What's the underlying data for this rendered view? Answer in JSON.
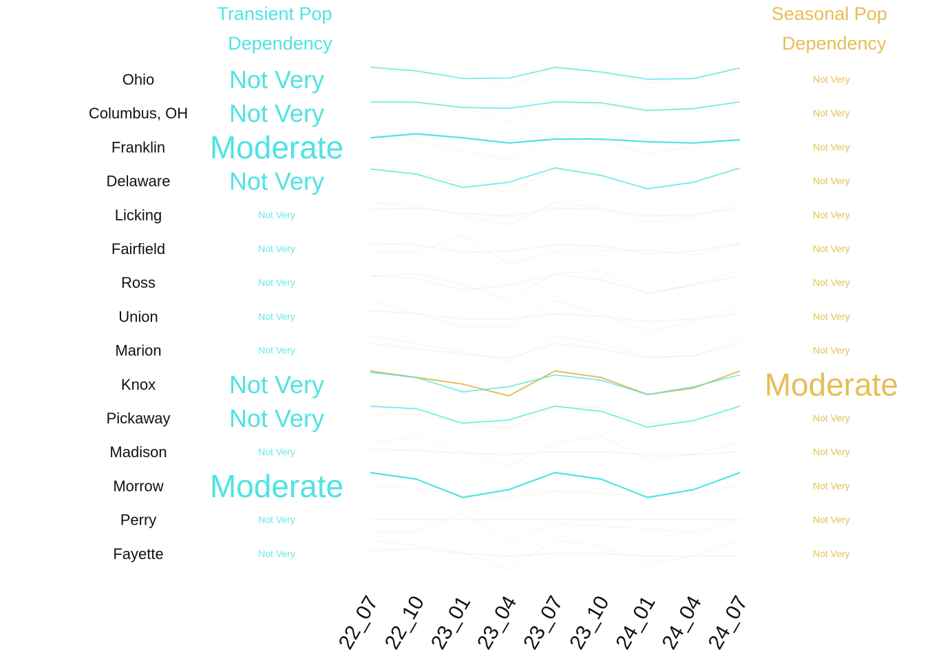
{
  "colors": {
    "transient": "#4FE3E3",
    "seasonal": "#E6BE55",
    "label": "#111111"
  },
  "headers": {
    "transient": [
      "Transient Pop",
      "Dependency"
    ],
    "seasonal": [
      "Seasonal Pop",
      "Dependency"
    ]
  },
  "chart_data": {
    "type": "line",
    "x": [
      "22_07",
      "22_10",
      "23_01",
      "23_04",
      "23_07",
      "23_10",
      "24_01",
      "24_04",
      "24_07"
    ],
    "rows": [
      {
        "region": "Ohio",
        "transient": {
          "level": "Not Very",
          "values": [
            0.92,
            0.63,
            0.06,
            0.08,
            0.9,
            0.55,
            0.0,
            0.04,
            0.85
          ]
        },
        "seasonal": {
          "level": "Not Very",
          "values": [
            0.85,
            0.45,
            0.35,
            -0.7,
            1.0,
            0.5,
            -0.3,
            0.1,
            0.9
          ]
        }
      },
      {
        "region": "Columbus, OH",
        "transient": {
          "level": "Not Very",
          "values": [
            0.85,
            0.83,
            0.43,
            0.36,
            0.85,
            0.78,
            0.2,
            0.34,
            0.85
          ]
        },
        "seasonal": {
          "level": "Not Very",
          "values": [
            0.7,
            0.7,
            0.4,
            -0.75,
            0.9,
            0.6,
            0.1,
            0.3,
            0.9
          ]
        }
      },
      {
        "region": "Franklin",
        "transient": {
          "level": "Moderate",
          "values": [
            0.7,
            1.0,
            0.7,
            0.3,
            0.6,
            0.6,
            0.4,
            0.3,
            0.55
          ]
        },
        "seasonal": {
          "level": "Not Very",
          "values": [
            1.0,
            0.4,
            -0.3,
            -1.0,
            1.0,
            0.5,
            -0.5,
            0.0,
            1.0
          ]
        }
      },
      {
        "region": "Delaware",
        "transient": {
          "level": "Not Very",
          "values": [
            0.9,
            0.51,
            -0.51,
            -0.11,
            0.99,
            0.41,
            -0.61,
            -0.11,
            0.99
          ]
        },
        "seasonal": {
          "level": "Not Very",
          "values": [
            0.9,
            0.6,
            -0.2,
            -0.9,
            0.9,
            0.4,
            -0.6,
            -0.1,
            0.9
          ]
        }
      },
      {
        "region": "Licking",
        "transient": {
          "level": "Not Very",
          "values": [
            0.4,
            0.5,
            0.1,
            -0.1,
            0.5,
            0.4,
            -0.1,
            0.0,
            0.5
          ]
        },
        "seasonal": {
          "level": "Not Very",
          "values": [
            0.92,
            0.72,
            -0.08,
            -0.78,
            0.92,
            0.52,
            -0.58,
            -0.18,
            0.92
          ]
        }
      },
      {
        "region": "Fairfield",
        "transient": {
          "level": "Not Very",
          "values": [
            0.4,
            0.3,
            -0.3,
            -0.2,
            0.3,
            0.2,
            -0.4,
            -0.2,
            0.4
          ]
        },
        "seasonal": {
          "level": "Not Very",
          "values": [
            -0.28,
            -0.28,
            1.0,
            -1.2,
            -0.2,
            -0.2,
            -0.1,
            -0.5,
            0.4
          ]
        }
      },
      {
        "region": "Ross",
        "transient": {
          "level": "Not Very",
          "values": [
            0.5,
            0.3,
            -0.6,
            -0.2,
            0.6,
            0.2,
            -0.8,
            -0.2,
            0.5
          ]
        },
        "seasonal": {
          "level": "Not Very",
          "values": [
            0.48,
            0.68,
            -0.12,
            -1.32,
            0.68,
            0.88,
            -0.92,
            -0.12,
            0.88
          ]
        }
      },
      {
        "region": "Union",
        "transient": {
          "level": "Not Very",
          "values": [
            0.4,
            0.2,
            -0.2,
            -0.2,
            0.2,
            0.0,
            -0.4,
            -0.2,
            0.2
          ]
        },
        "seasonal": {
          "level": "Not Very",
          "values": [
            1.2,
            0.2,
            -0.8,
            -0.8,
            1.2,
            0.2,
            -1.2,
            -0.4,
            0.8
          ]
        }
      },
      {
        "region": "Marion",
        "transient": {
          "level": "Not Very",
          "values": [
            0.5,
            0.1,
            -0.3,
            -0.6,
            0.5,
            0.1,
            -0.6,
            -0.4,
            0.5
          ]
        },
        "seasonal": {
          "level": "Not Very",
          "values": [
            1.1,
            0.5,
            -0.1,
            -0.9,
            1.1,
            0.5,
            -0.5,
            -0.5,
            0.9
          ]
        }
      },
      {
        "region": "Knox",
        "transient": {
          "level": "Not Very",
          "values": [
            0.9,
            0.5,
            -0.6,
            -0.2,
            0.7,
            0.3,
            -0.8,
            -0.2,
            0.7
          ]
        },
        "seasonal": {
          "level": "Moderate",
          "values": [
            1.0,
            0.5,
            0.0,
            -0.9,
            1.0,
            0.5,
            -0.8,
            -0.3,
            1.0
          ]
        }
      },
      {
        "region": "Pickaway",
        "transient": {
          "level": "Not Very",
          "values": [
            0.9,
            0.7,
            -0.4,
            -0.15,
            0.9,
            0.5,
            -0.7,
            -0.2,
            0.9
          ]
        },
        "seasonal": {
          "level": "Not Very",
          "values": [
            0.3,
            0.3,
            -0.4,
            -0.8,
            0.8,
            0.8,
            -0.4,
            -0.4,
            0.4
          ]
        }
      },
      {
        "region": "Madison",
        "transient": {
          "level": "Not Very",
          "values": [
            0.2,
            0.1,
            -0.1,
            -0.2,
            0.0,
            0.0,
            -0.2,
            -0.2,
            0.0
          ]
        },
        "seasonal": {
          "level": "Not Very",
          "values": [
            0.6,
            1.2,
            0.0,
            -1.1,
            0.7,
            1.2,
            -0.6,
            -0.2,
            0.8
          ]
        }
      },
      {
        "region": "Morrow",
        "transient": {
          "level": "Moderate",
          "values": [
            1.0,
            0.5,
            -0.9,
            -0.3,
            1.0,
            0.5,
            -0.9,
            -0.3,
            1.0
          ]
        },
        "seasonal": {
          "level": "Not Very",
          "values": [
            0.0,
            -0.2,
            -0.7,
            -0.9,
            -0.4,
            -0.6,
            -0.8,
            -0.6,
            0.0
          ]
        }
      },
      {
        "region": "Perry",
        "transient": {
          "level": "Not Very",
          "values": [
            0.0,
            0.0,
            0.0,
            0.0,
            0.0,
            0.0,
            0.0,
            0.0,
            0.0
          ]
        },
        "seasonal": {
          "level": "Not Very",
          "values": [
            -0.9,
            -0.9,
            0.5,
            -1.7,
            -0.3,
            -0.5,
            -0.7,
            -1.0,
            0.0
          ]
        }
      },
      {
        "region": "Fayette",
        "transient": {
          "level": "Not Very",
          "values": [
            0.2,
            0.4,
            0.0,
            -0.2,
            0.0,
            0.0,
            -0.2,
            -0.2,
            -0.2
          ]
        },
        "seasonal": {
          "level": "Not Very",
          "values": [
            1.0,
            0.6,
            0.1,
            -1.2,
            1.0,
            0.6,
            -0.8,
            -0.2,
            1.0
          ]
        }
      }
    ]
  }
}
